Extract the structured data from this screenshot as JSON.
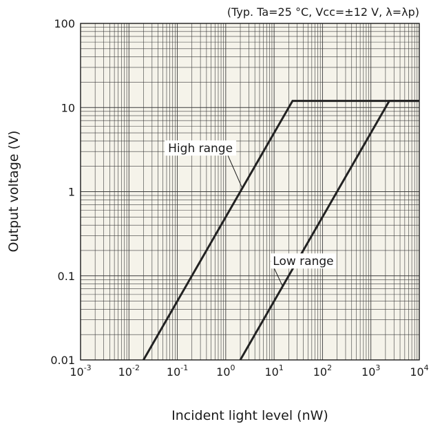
{
  "chart_data": {
    "type": "line",
    "title": "",
    "conditions": "(Typ. Ta=25 °C, Vcc=±12 V, λ=λp)",
    "xlabel": "Incident light level (nW)",
    "ylabel": "Output voltage (V)",
    "x_scale": "log",
    "y_scale": "log",
    "xlim": [
      0.001,
      10000
    ],
    "ylim": [
      0.01,
      100
    ],
    "grid": true,
    "background": "#f5f3ea",
    "line_color": "#222222",
    "x_ticks": [
      {
        "base": "10",
        "exp": "-3",
        "value": 0.001
      },
      {
        "base": "10",
        "exp": "-2",
        "value": 0.01
      },
      {
        "base": "10",
        "exp": "-1",
        "value": 0.1
      },
      {
        "base": "10",
        "exp": "0",
        "value": 1
      },
      {
        "base": "10",
        "exp": "1",
        "value": 10
      },
      {
        "base": "10",
        "exp": "2",
        "value": 100
      },
      {
        "base": "10",
        "exp": "3",
        "value": 1000
      },
      {
        "base": "10",
        "exp": "4",
        "value": 10000
      }
    ],
    "y_ticks": [
      {
        "label": "0.01",
        "value": 0.01
      },
      {
        "label": "0.1",
        "value": 0.1
      },
      {
        "label": "1",
        "value": 1
      },
      {
        "label": "10",
        "value": 10
      },
      {
        "label": "100",
        "value": 100
      }
    ],
    "series": [
      {
        "name": "High range",
        "x": [
          0.02,
          24,
          10000
        ],
        "y": [
          0.01,
          12,
          12
        ]
      },
      {
        "name": "Low range",
        "x": [
          2,
          2400,
          10000
        ],
        "y": [
          0.01,
          12,
          12
        ]
      }
    ],
    "annotations": [
      {
        "text": "High range",
        "x": 0.3,
        "y": 3.3
      },
      {
        "text": "Low range",
        "x": 40,
        "y": 0.15
      }
    ]
  }
}
